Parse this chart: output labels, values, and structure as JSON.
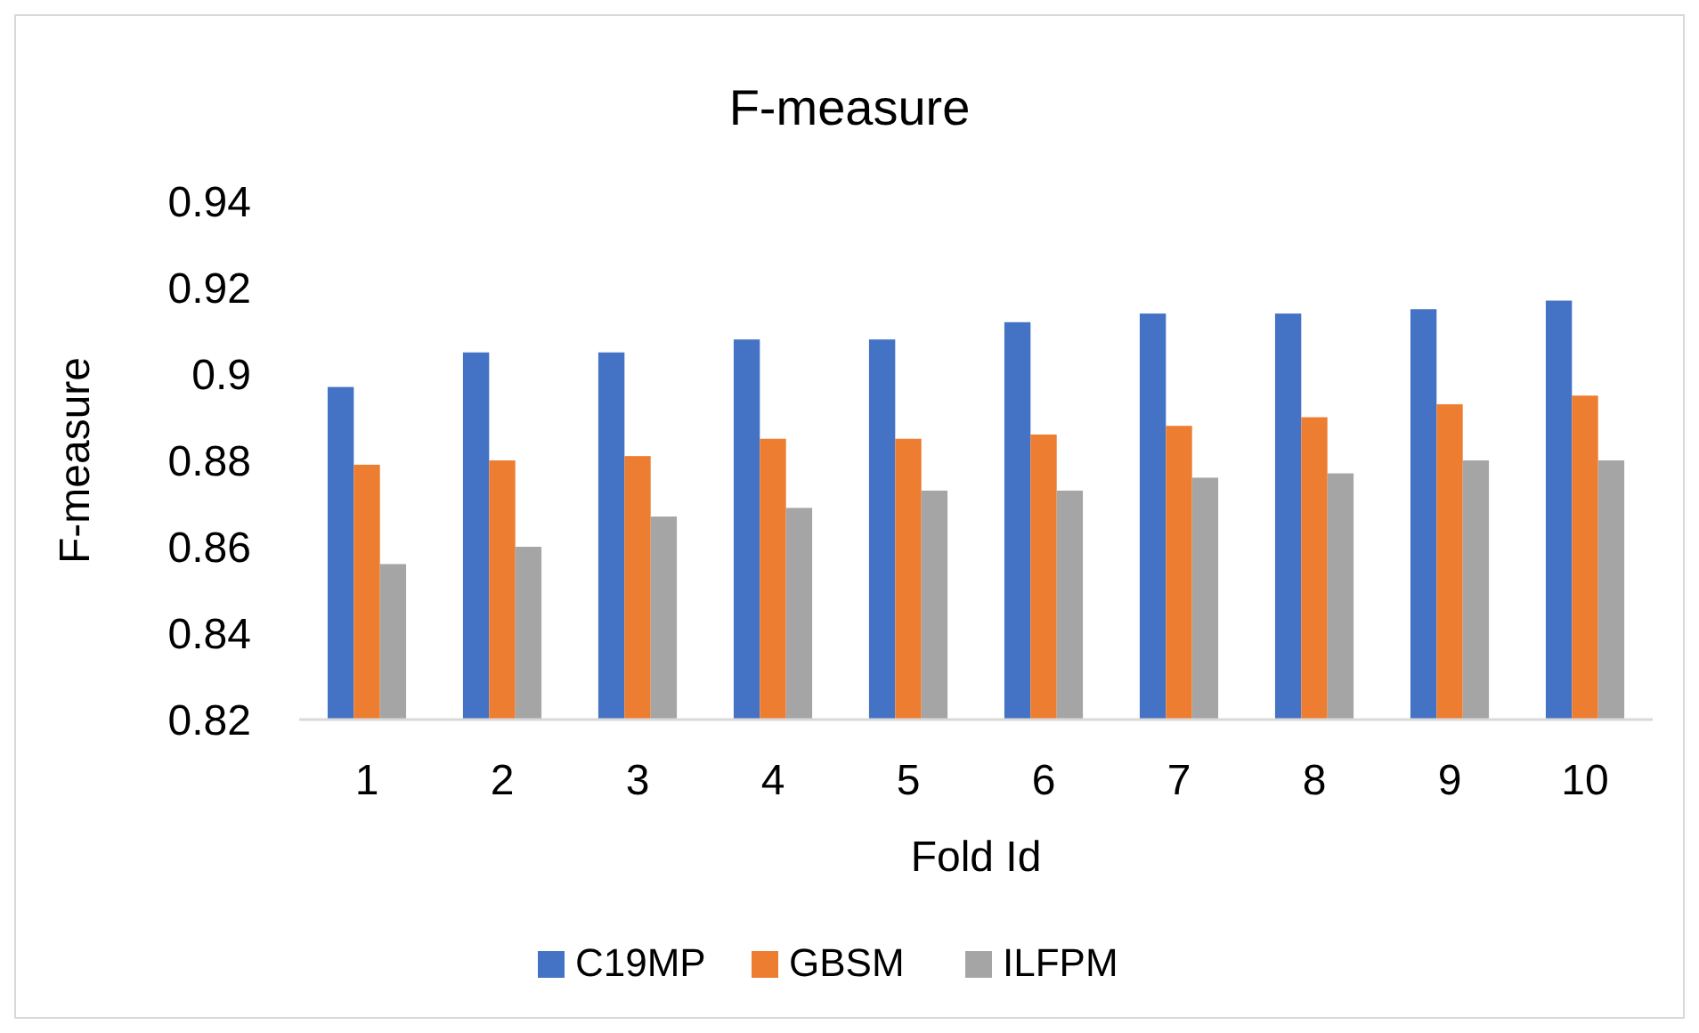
{
  "chart_data": {
    "type": "bar",
    "title": "F-measure",
    "xlabel": "Fold Id",
    "ylabel": "F-measure",
    "categories": [
      "1",
      "2",
      "3",
      "4",
      "5",
      "6",
      "7",
      "8",
      "9",
      "10"
    ],
    "series": [
      {
        "name": "C19MP",
        "color": "#4472c4",
        "values": [
          0.897,
          0.905,
          0.905,
          0.908,
          0.908,
          0.912,
          0.914,
          0.914,
          0.915,
          0.917
        ]
      },
      {
        "name": "GBSM",
        "color": "#ed7d31",
        "values": [
          0.879,
          0.88,
          0.881,
          0.885,
          0.885,
          0.886,
          0.888,
          0.89,
          0.893,
          0.895
        ]
      },
      {
        "name": "ILFPM",
        "color": "#a5a5a5",
        "values": [
          0.856,
          0.86,
          0.867,
          0.869,
          0.873,
          0.873,
          0.876,
          0.877,
          0.88,
          0.88
        ]
      }
    ],
    "ylim": [
      0.82,
      0.94
    ],
    "yticks": [
      0.82,
      0.84,
      0.86,
      0.88,
      0.9,
      0.92,
      0.94
    ],
    "grid": false,
    "legend": "bottom"
  }
}
